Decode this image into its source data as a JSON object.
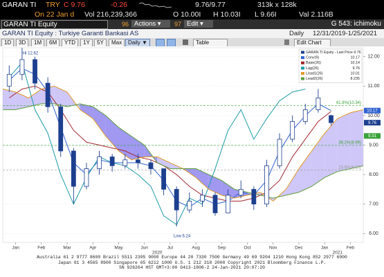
{
  "header": {
    "ticker": "GARAN TI",
    "currency": "TRY",
    "last": "C 9.76",
    "change": "-0.26",
    "bid_ask": "9.76/9.77",
    "size": "313k x 128k",
    "date": "On 22 Jan d",
    "volume": "Vol 216,239,366",
    "open": "O 10.00I",
    "high": "H 10.03I",
    "low": "L 9.66I",
    "value": "Val 2.116B"
  },
  "toolbar": {
    "security": "GARAN TI Equity",
    "actions_num": "96",
    "actions": "Actions ▾",
    "edit_num": "97",
    "edit": "Edit ▾",
    "function": "G 543: ichimoku"
  },
  "subheader": {
    "title": "GARAN TI Equity : Turkiye Garanti Bankasi AS",
    "period": "Daily",
    "range": "12/31/2019-1/25/2021"
  },
  "buttons": [
    "1D",
    "3D",
    "1M",
    "6M",
    "YTD",
    "1Y",
    "5Y",
    "Max"
  ],
  "frequency": "Daily ▼",
  "table": "Table",
  "edit_chart": "Edit Chart",
  "chart_data": {
    "type": "candlestick",
    "legend_title": "GARAN TI Equity - Last Price 9.76",
    "candle_color": "#1d3f8f",
    "xlim": [
      0,
      14
    ],
    "xticks": [
      {
        "value": 0.5,
        "label": "Jan"
      },
      {
        "value": 1.5,
        "label": "Feb"
      },
      {
        "value": 2.5,
        "label": "Mar"
      },
      {
        "value": 3.5,
        "label": "Apr"
      },
      {
        "value": 4.5,
        "label": "May"
      },
      {
        "value": 5.5,
        "label": "Jun"
      },
      {
        "value": 6.5,
        "label": "Jul"
      },
      {
        "value": 7.5,
        "label": "Aug"
      },
      {
        "value": 8.5,
        "label": "Sep"
      },
      {
        "value": 9.5,
        "label": "Oct"
      },
      {
        "value": 10.5,
        "label": "Nov"
      },
      {
        "value": 11.5,
        "label": "Dec"
      },
      {
        "value": 12.5,
        "label": "Jan"
      },
      {
        "value": 13.5,
        "label": "Feb"
      }
    ],
    "year_ticks": [
      {
        "value": 6,
        "label": "2020"
      },
      {
        "value": 13,
        "label": "2021"
      }
    ],
    "ylim": [
      5.7,
      12.3
    ],
    "yticks": [
      {
        "value": 6,
        "label": "6.00"
      },
      {
        "value": 7,
        "label": "7.00"
      },
      {
        "value": 8,
        "label": "8.00"
      },
      {
        "value": 9,
        "label": "9.00"
      },
      {
        "value": 10,
        "label": "10.00"
      },
      {
        "value": 11,
        "label": "11.00"
      },
      {
        "value": 12,
        "label": "12.00"
      }
    ],
    "grid": true,
    "x": [
      0.25,
      0.75,
      1.25,
      1.75,
      2.25,
      2.75,
      3.25,
      3.75,
      4.25,
      4.75,
      5.25,
      5.75,
      6.25,
      6.75,
      7.25,
      7.75,
      8.25,
      8.75,
      9.25,
      9.75,
      10.25,
      10.75,
      11.25,
      11.75,
      12.25,
      12.75
    ],
    "open": [
      11.0,
      11.4,
      11.9,
      11.1,
      10.3,
      8.8,
      7.6,
      8.2,
      8.6,
      8.3,
      8.5,
      8.4,
      8.2,
      7.5,
      6.8,
      7.1,
      7.3,
      6.7,
      7.3,
      7.5,
      7.0,
      8.3,
      9.2,
      9.8,
      10.2,
      10.0
    ],
    "high": [
      11.7,
      12.3,
      12.0,
      11.3,
      10.4,
      8.9,
      8.4,
      8.8,
      8.7,
      8.7,
      8.7,
      8.5,
      8.2,
      7.6,
      7.4,
      7.5,
      7.4,
      7.5,
      7.8,
      7.6,
      8.5,
      9.4,
      10.0,
      10.4,
      10.9,
      10.03
    ],
    "low": [
      10.8,
      11.2,
      10.9,
      10.1,
      8.6,
      7.0,
      7.5,
      8.0,
      8.1,
      8.2,
      8.2,
      8.0,
      7.3,
      6.24,
      6.7,
      6.9,
      6.6,
      6.7,
      7.2,
      6.8,
      6.9,
      8.2,
      9.1,
      9.7,
      10.1,
      9.66
    ],
    "close": [
      11.4,
      11.9,
      11.1,
      10.3,
      8.8,
      7.6,
      8.2,
      8.6,
      8.3,
      8.5,
      8.4,
      8.2,
      7.5,
      6.8,
      7.1,
      7.3,
      6.7,
      7.3,
      7.5,
      7.0,
      8.3,
      9.2,
      9.8,
      10.2,
      10.6,
      9.76
    ],
    "cloud": {
      "bull": "#c7bdf6",
      "bear": "#8f86ee"
    },
    "series": [
      {
        "name": "Conv(9)",
        "color": "#2f62d0",
        "last": 10.17,
        "values": [
          11.2,
          11.6,
          11.4,
          10.8,
          9.6,
          8.4,
          8.0,
          8.5,
          8.4,
          8.4,
          8.4,
          8.3,
          7.8,
          7.1,
          6.9,
          7.2,
          7.0,
          7.1,
          7.4,
          7.3,
          7.8,
          8.8,
          9.5,
          10.0,
          10.4,
          10.17
        ]
      },
      {
        "name": "Base(26)",
        "color": "#a3262e",
        "last": 10.14,
        "values": [
          10.6,
          10.9,
          11.0,
          10.8,
          10.2,
          9.5,
          9.1,
          9.0,
          8.9,
          8.8,
          8.6,
          8.5,
          8.3,
          8.0,
          7.6,
          7.3,
          7.2,
          7.1,
          7.1,
          7.2,
          7.4,
          7.8,
          8.6,
          9.2,
          9.8,
          10.14
        ]
      },
      {
        "name": "Lag(26)",
        "color": "#1b9aa6",
        "last": 9.76,
        "x": [
          0.25,
          0.75,
          1.25,
          1.75,
          2.25,
          2.75,
          3.25,
          3.75,
          4.25,
          4.75,
          5.25,
          5.75,
          6.25,
          6.75,
          7.25,
          7.75,
          8.25,
          8.75,
          9.25,
          9.75,
          10.25,
          10.75,
          11.25,
          11.75
        ],
        "values": [
          11.3,
          11.8,
          10.2,
          9.4,
          8.0,
          7.0,
          7.9,
          8.6,
          8.4,
          8.3,
          8.0,
          7.6,
          6.6,
          6.3,
          7.2,
          7.0,
          8.2,
          9.5,
          10.2,
          9.2,
          9.9,
          10.5,
          10.8,
          10.9
        ]
      },
      {
        "name": "Lead1(26)",
        "color": "#e39a26",
        "last": 10.01,
        "x": [
          0,
          0.5,
          1,
          1.5,
          2,
          2.5,
          3,
          3.5,
          4,
          4.5,
          5,
          5.5,
          6,
          6.5,
          7,
          7.5,
          8,
          8.5,
          9,
          9.5,
          10,
          10.5,
          11,
          11.5,
          12,
          12.5,
          13,
          13.5,
          14
        ],
        "values": [
          10.9,
          10.8,
          10.6,
          10.9,
          11.0,
          10.8,
          10.2,
          9.9,
          9.3,
          8.8,
          8.5,
          8.6,
          8.6,
          8.4,
          8.2,
          7.9,
          7.5,
          7.3,
          7.2,
          7.3,
          7.4,
          7.1,
          7.5,
          8.2,
          8.8,
          9.4,
          9.9,
          10.1,
          10.2
        ]
      },
      {
        "name": "Lead2(26)",
        "color": "#5c9e3c",
        "last": 8.235,
        "x": [
          0,
          0.5,
          1,
          1.5,
          2,
          2.5,
          3,
          3.5,
          4,
          4.5,
          5,
          5.5,
          6,
          6.5,
          7,
          7.5,
          8,
          8.5,
          9,
          9.5,
          10,
          10.5,
          11,
          11.5,
          12,
          12.5,
          13,
          13.5,
          14
        ],
        "values": [
          10.2,
          10.2,
          10.3,
          10.4,
          10.4,
          10.3,
          10.4,
          10.3,
          10.0,
          9.6,
          9.3,
          9.0,
          8.4,
          8.2,
          8.2,
          8.2,
          8.0,
          7.8,
          7.5,
          7.4,
          7.3,
          7.2,
          7.3,
          7.4,
          7.6,
          7.9,
          8.1,
          8.2,
          8.3
        ]
      }
    ],
    "levels": [
      {
        "value": 10.34,
        "label": "61.8%(10.34)",
        "color": "#3aa23a"
      },
      {
        "value": 8.99,
        "label": "38.2%(8.99)",
        "color": "#3aa23a"
      },
      {
        "value": 8.15,
        "label": "23.6%(8.15)",
        "color": "#9a9a9a"
      }
    ],
    "price_tags": [
      {
        "value": 10.17,
        "color": "#2f62d0"
      },
      {
        "value": 9.76,
        "color": "#1d3f8f"
      },
      {
        "value": 9.31,
        "color": "#3aa23a"
      }
    ],
    "annotations": [
      "Hi 12.62",
      "Low 6.24"
    ]
  },
  "footer": [
    "Australia 61 2 9777 8600 Brazil 5511 2395 9000 Europe 44 20 7330 7500 Germany 49 69 9204 1210 Hong Kong 852 2977 6000",
    "Japan 81 3 4565 8900 Singapore 65 6212 1000 U.S. 1 212 318 2000 Copyright 2021 Bloomberg Finance L.P.",
    "SN 926264 HST GMT+3:00 G413-1806-2 24-Jan-2021 20:07:20"
  ]
}
